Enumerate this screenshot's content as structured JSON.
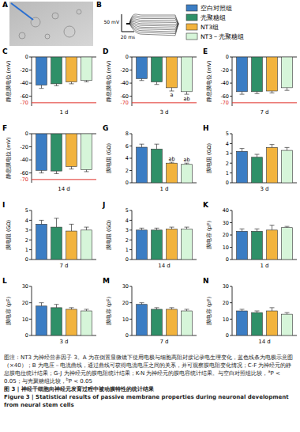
{
  "panels": {
    "A": {
      "label": "A"
    },
    "B": {
      "label": "B",
      "scale_bar": [
        "50 mV",
        "20 ms"
      ]
    }
  },
  "groups": [
    {
      "name": "空白对照组",
      "color": "#3b7dc4"
    },
    {
      "name": "壳聚糖组",
      "color": "#2f9068"
    },
    {
      "name": "NT3组",
      "color": "#f2b33d"
    },
    {
      "name": "NT3－壳聚糖组",
      "color": "#d6f5d9"
    }
  ],
  "chart_data": [
    {
      "type": "bar",
      "label": "C",
      "xlabel": "1 d",
      "ylabel": "静息膜电位 (mV)",
      "categories": [
        null,
        null,
        null,
        null
      ],
      "values": [
        -43,
        -41,
        -38,
        -36
      ],
      "errors": [
        5,
        3,
        3,
        2
      ],
      "annotations": [
        null,
        null,
        null,
        null
      ],
      "colors": [
        "#3b7dc4",
        "#2f9068",
        "#f2b33d",
        "#d6f5d9"
      ],
      "ylim": [
        -75,
        0
      ],
      "yticks": [
        0,
        -20,
        -40,
        -60
      ],
      "reference_line": {
        "value": -70,
        "color": "#e0302a"
      }
    },
    {
      "type": "bar",
      "label": "D",
      "xlabel": "3 d",
      "ylabel": "静息膜电位 (mV)",
      "categories": [
        null,
        null,
        null,
        null
      ],
      "values": [
        -33,
        -38,
        -47,
        -53
      ],
      "errors": [
        3,
        4,
        5,
        4
      ],
      "annotations": [
        null,
        null,
        "a",
        "ab"
      ],
      "colors": [
        "#3b7dc4",
        "#2f9068",
        "#f2b33d",
        "#d6f5d9"
      ],
      "ylim": [
        -75,
        0
      ],
      "yticks": [
        0,
        -20,
        -40,
        -60
      ],
      "reference_line": {
        "value": -70,
        "color": "#e0302a"
      }
    },
    {
      "type": "bar",
      "label": "E",
      "xlabel": "7 d",
      "ylabel": "静息膜电位 (mV)",
      "categories": [
        null,
        null,
        null,
        null
      ],
      "values": [
        -53,
        -53,
        -52,
        -47
      ],
      "errors": [
        4,
        3,
        3,
        4
      ],
      "annotations": [
        null,
        null,
        null,
        null
      ],
      "colors": [
        "#3b7dc4",
        "#2f9068",
        "#f2b33d",
        "#d6f5d9"
      ],
      "ylim": [
        -75,
        0
      ],
      "yticks": [
        0,
        -20,
        -40,
        -60
      ],
      "reference_line": {
        "value": -70,
        "color": "#e0302a"
      }
    },
    {
      "type": "bar",
      "label": "F",
      "xlabel": "14 d",
      "ylabel": "静息膜电位 (mV)",
      "categories": [
        null,
        null,
        null,
        null
      ],
      "values": [
        -56,
        -57,
        -50,
        -55
      ],
      "errors": [
        4,
        4,
        4,
        3
      ],
      "annotations": [
        null,
        null,
        null,
        null
      ],
      "colors": [
        "#3b7dc4",
        "#2f9068",
        "#f2b33d",
        "#d6f5d9"
      ],
      "ylim": [
        -75,
        0
      ],
      "yticks": [
        0,
        -20,
        -40,
        -60
      ],
      "reference_line": {
        "value": -70,
        "color": "#e0302a"
      }
    },
    {
      "type": "bar",
      "label": "G",
      "xlabel": "1 d",
      "ylabel": "膜电阻 (GΩ)",
      "categories": [
        null,
        null,
        null,
        null
      ],
      "values": [
        5.8,
        5.5,
        3.2,
        3.0
      ],
      "errors": [
        0.5,
        0.8,
        0.15,
        0.2
      ],
      "annotations": [
        null,
        null,
        "ab",
        "ab"
      ],
      "colors": [
        "#3b7dc4",
        "#2f9068",
        "#f2b33d",
        "#d6f5d9"
      ],
      "ylim": [
        0,
        8
      ],
      "yticks": [
        0,
        2,
        4,
        6,
        8
      ]
    },
    {
      "type": "bar",
      "label": "H",
      "xlabel": "3 d",
      "ylabel": "膜电阻 (GΩ)",
      "categories": [
        null,
        null,
        null,
        null
      ],
      "values": [
        3.2,
        2.6,
        3.6,
        3.3
      ],
      "errors": [
        0.3,
        0.3,
        0.3,
        0.3
      ],
      "annotations": [
        null,
        null,
        null,
        null
      ],
      "colors": [
        "#3b7dc4",
        "#2f9068",
        "#f2b33d",
        "#d6f5d9"
      ],
      "ylim": [
        0,
        5
      ],
      "yticks": [
        0,
        1,
        2,
        3,
        4,
        5
      ]
    },
    {
      "type": "bar",
      "label": "I",
      "xlabel": "7 d",
      "ylabel": "膜电阻 (GΩ)",
      "categories": [
        null,
        null,
        null,
        null
      ],
      "values": [
        3.6,
        3.3,
        2.9,
        3.0
      ],
      "errors": [
        0.4,
        0.9,
        0.7,
        0.3
      ],
      "annotations": [
        null,
        null,
        null,
        null
      ],
      "colors": [
        "#3b7dc4",
        "#2f9068",
        "#f2b33d",
        "#d6f5d9"
      ],
      "ylim": [
        0,
        5
      ],
      "yticks": [
        0,
        1,
        2,
        3,
        4,
        5
      ]
    },
    {
      "type": "bar",
      "label": "J",
      "xlabel": "14 d",
      "ylabel": "膜电阻 (GΩ)",
      "categories": [
        null,
        null,
        null,
        null
      ],
      "values": [
        3.0,
        3.0,
        3.1,
        3.1
      ],
      "errors": [
        0.2,
        0.2,
        0.2,
        0.2
      ],
      "annotations": [
        null,
        null,
        null,
        null
      ],
      "colors": [
        "#3b7dc4",
        "#2f9068",
        "#f2b33d",
        "#d6f5d9"
      ],
      "ylim": [
        0,
        5
      ],
      "yticks": [
        0,
        1,
        2,
        3,
        4,
        5
      ]
    },
    {
      "type": "bar",
      "label": "K",
      "xlabel": "1 d",
      "ylabel": "膜电容 (pF)",
      "categories": [
        null,
        null,
        null,
        null
      ],
      "values": [
        23,
        23,
        24,
        26
      ],
      "errors": [
        2,
        2,
        4,
        1
      ],
      "annotations": [
        null,
        null,
        null,
        null
      ],
      "colors": [
        "#3b7dc4",
        "#2f9068",
        "#f2b33d",
        "#d6f5d9"
      ],
      "ylim": [
        0,
        40
      ],
      "yticks": [
        0,
        10,
        20,
        30,
        40
      ]
    },
    {
      "type": "bar",
      "label": "L",
      "xlabel": "3 d",
      "ylabel": "膜电容 (pF)",
      "categories": [
        null,
        null,
        null,
        null
      ],
      "values": [
        18,
        17,
        16,
        15
      ],
      "errors": [
        2,
        2,
        1,
        1
      ],
      "annotations": [
        null,
        null,
        null,
        null
      ],
      "colors": [
        "#3b7dc4",
        "#2f9068",
        "#f2b33d",
        "#d6f5d9"
      ],
      "ylim": [
        0,
        30
      ],
      "yticks": [
        0,
        10,
        20,
        30
      ]
    },
    {
      "type": "bar",
      "label": "M",
      "xlabel": "7 d",
      "ylabel": "膜电容 (pF)",
      "categories": [
        null,
        null,
        null,
        null
      ],
      "values": [
        19,
        16,
        16,
        15
      ],
      "errors": [
        1,
        1,
        1,
        1
      ],
      "annotations": [
        null,
        null,
        null,
        null
      ],
      "colors": [
        "#3b7dc4",
        "#2f9068",
        "#f2b33d",
        "#d6f5d9"
      ],
      "ylim": [
        0,
        30
      ],
      "yticks": [
        0,
        10,
        20,
        30
      ]
    },
    {
      "type": "bar",
      "label": "N",
      "xlabel": "14 d",
      "ylabel": "膜电容 (pF)",
      "categories": [
        null,
        null,
        null,
        null
      ],
      "values": [
        15,
        14,
        15,
        13
      ],
      "errors": [
        1,
        1,
        2,
        1
      ],
      "annotations": [
        null,
        null,
        null,
        null
      ],
      "colors": [
        "#3b7dc4",
        "#2f9068",
        "#f2b33d",
        "#d6f5d9"
      ],
      "ylim": [
        0,
        30
      ],
      "yticks": [
        0,
        10,
        20,
        30
      ]
    }
  ],
  "caption": {
    "parts": [
      {
        "text": "图注：NT3 为神经营养因子 3。A 为在倒置显微镜下使用电极与细胞高阻封接记录电生理变化，蓝色线条为电极示意图（×40）；B 为电压－电流曲线，通过曲线可获得电流电压之间的关系，并可观察膜电阻变化情况；C-F 为神经元的静息膜电位统计结果；G-J 为神经元的膜电阻统计结果；K-N 为神经元的膜电容统计结果。与空白对照组比较，"
      },
      {
        "text": "a",
        "sup": true
      },
      {
        "text": "P < 0.05；与壳聚糖组比较，"
      },
      {
        "text": "b",
        "sup": true
      },
      {
        "text": "P < 0.05"
      }
    ],
    "title_cn": "图 3  |  神经干细胞向神经元发育过程中被动膜特性的统计结果",
    "title_en": "Figure 3  |  Statistical results of passive membrane properties during neuronal development from neural stem cells"
  }
}
